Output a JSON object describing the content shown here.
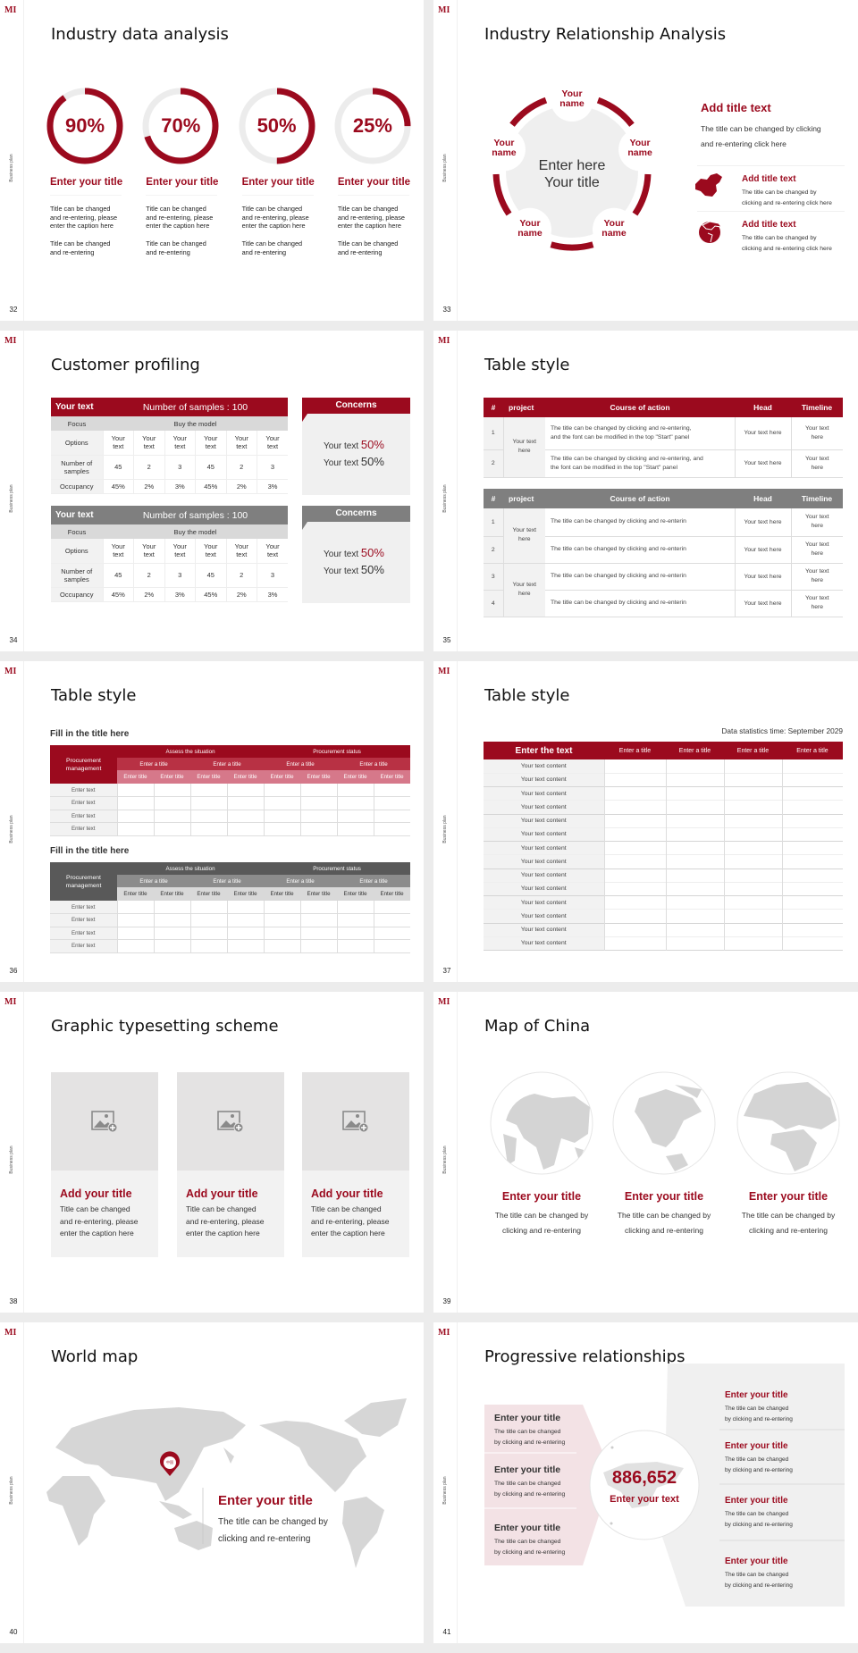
{
  "deck": {
    "logo": "MI",
    "side_label": "Business plan"
  },
  "colors": {
    "accent": "#9b0a1e",
    "gray_header": "#7f7f7f",
    "panel": "#f2f2f2"
  },
  "s32": {
    "title": "Industry data analysis",
    "page": "32",
    "donuts": [
      {
        "value": 90,
        "label": "90%",
        "title": "Enter your title",
        "p1": "Title can be changed\nand re-entering, please\nenter the caption here",
        "p2": "Title can be changed\nand re-entering"
      },
      {
        "value": 70,
        "label": "70%",
        "title": "Enter your title",
        "p1": "Title can be changed\nand re-entering, please\nenter the caption here",
        "p2": "Title can be changed\nand re-entering"
      },
      {
        "value": 50,
        "label": "50%",
        "title": "Enter your title",
        "p1": "Title can be changed\nand re-entering, please\nenter the caption here",
        "p2": "Title can be changed\nand re-entering"
      },
      {
        "value": 25,
        "label": "25%",
        "title": "Enter your title",
        "p1": "Title can be changed\nand re-entering, please\nenter the caption here",
        "p2": "Title can be changed\nand re-entering"
      }
    ]
  },
  "s33": {
    "title": "Industry Relationship Analysis",
    "page": "33",
    "center": "Enter here\nYour title",
    "names": [
      "Your\nname",
      "Your\nname",
      "Your\nname",
      "Your\nname",
      "Your\nname"
    ],
    "main_title": "Add title text",
    "main_body": "The title can be changed by clicking\nand re-entering click here",
    "items": [
      {
        "icon": "china-map-icon",
        "title": "Add title text",
        "body": "The title can be changed by\nclicking and re-entering click here"
      },
      {
        "icon": "globe-icon",
        "title": "Add title text",
        "body": "The title can be changed by\nclicking and re-entering click here"
      }
    ]
  },
  "s34": {
    "title": "Customer profiling",
    "page": "34",
    "tables": [
      {
        "head_left": "Your text",
        "head_right": "Number of samples : 100",
        "focus": "Focus",
        "focus_value": "Buy the model",
        "rows": [
          {
            "label": "Options",
            "cells": [
              "Your\ntext",
              "Your\ntext",
              "Your\ntext",
              "Your\ntext",
              "Your\ntext",
              "Your\ntext"
            ]
          },
          {
            "label": "Number of\nsamples",
            "cells": [
              "45",
              "2",
              "3",
              "45",
              "2",
              "3"
            ]
          },
          {
            "label": "Occupancy",
            "cells": [
              "45%",
              "2%",
              "3%",
              "45%",
              "2%",
              "3%"
            ]
          }
        ]
      },
      {
        "head_left": "Your text",
        "head_right": "Number of samples : 100",
        "focus": "Focus",
        "focus_value": "Buy the model",
        "rows": [
          {
            "label": "Options",
            "cells": [
              "Your\ntext",
              "Your\ntext",
              "Your\ntext",
              "Your\ntext",
              "Your\ntext",
              "Your\ntext"
            ]
          },
          {
            "label": "Number of\nsamples",
            "cells": [
              "45",
              "2",
              "3",
              "45",
              "2",
              "3"
            ]
          },
          {
            "label": "Occupancy",
            "cells": [
              "45%",
              "2%",
              "3%",
              "45%",
              "2%",
              "3%"
            ]
          }
        ]
      }
    ],
    "concerns": [
      {
        "title": "Concerns",
        "lines": [
          {
            "text": "Your text",
            "value": "50%"
          },
          {
            "text": "Your text",
            "value": "50%"
          }
        ]
      },
      {
        "title": "Concerns",
        "lines": [
          {
            "text": "Your text",
            "value": "50%"
          },
          {
            "text": "Your text",
            "value": "50%"
          }
        ]
      }
    ]
  },
  "s35": {
    "title": "Table style",
    "page": "35",
    "headers": [
      "#",
      "project",
      "Course of action",
      "Head",
      "Timeline"
    ],
    "table1": {
      "projects": [
        "Your text\nhere"
      ],
      "rows": [
        {
          "n": "1",
          "action": "The title can be changed by clicking and re-entering,\nand the font can be modified in the top \"Start\" panel",
          "head": "Your text here",
          "time": "Your text\nhere"
        },
        {
          "n": "2",
          "action": "The title can be changed by clicking and re-entering, and\nthe font can be modified in the top \"Start\" panel",
          "head": "Your text here",
          "time": "Your text\nhere"
        }
      ]
    },
    "table2": {
      "projects": [
        "Your text\nhere",
        "Your text\nhere"
      ],
      "rows": [
        {
          "n": "1",
          "action": "The title can be changed by clicking and re-enterin",
          "head": "Your text here",
          "time": "Your text\nhere"
        },
        {
          "n": "2",
          "action": "The title can be changed by clicking and re-enterin",
          "head": "Your text here",
          "time": "Your text\nhere"
        },
        {
          "n": "3",
          "action": "The title can be changed by clicking and re-enterin",
          "head": "Your text here",
          "time": "Your text\nhere"
        },
        {
          "n": "4",
          "action": "The title can be changed by clicking and re-enterin",
          "head": "Your text here",
          "time": "Your text\nhere"
        }
      ]
    }
  },
  "s36": {
    "title": "Table style",
    "page": "36",
    "tables": [
      {
        "caption": "Fill in the title here",
        "corner": "Procurement\nmanagement",
        "groups": [
          "Assess the situation",
          "Procurement status"
        ],
        "subgroups": [
          "Enter a title",
          "Enter a title",
          "Enter a title",
          "Enter a title"
        ],
        "cols": [
          "Enter title",
          "Enter title",
          "Enter title",
          "Enter title",
          "Enter title",
          "Enter title",
          "Enter title",
          "Enter title"
        ],
        "rows": [
          "Enter text",
          "Enter text",
          "Enter text",
          "Enter text"
        ]
      },
      {
        "caption": "Fill in the title here",
        "corner": "Procurement\nmanagement",
        "groups": [
          "Assess the situation",
          "Procurement status"
        ],
        "subgroups": [
          "Enter a title",
          "Enter a title",
          "Enter a title",
          "Enter a title"
        ],
        "cols": [
          "Enter title",
          "Enter title",
          "Enter title",
          "Enter title",
          "Enter title",
          "Enter title",
          "Enter title",
          "Enter title"
        ],
        "rows": [
          "Enter text",
          "Enter text",
          "Enter text",
          "Enter text"
        ]
      }
    ]
  },
  "s37": {
    "title": "Table style",
    "page": "37",
    "note": "Data statistics time: September 2029",
    "headers": [
      "Enter the text",
      "Enter a title",
      "Enter a title",
      "Enter a title",
      "Enter a title"
    ],
    "rows": [
      "Your text content",
      "Your text content",
      "Your text content",
      "Your text content",
      "Your text content",
      "Your text content",
      "Your text content",
      "Your text content",
      "Your text content",
      "Your text content",
      "Your text content",
      "Your text content",
      "Your text content",
      "Your text content"
    ]
  },
  "s38": {
    "title": "Graphic typesetting scheme",
    "page": "38",
    "cards": [
      {
        "title": "Add your title",
        "body": "Title can be changed\nand re-entering, please\nenter the caption here"
      },
      {
        "title": "Add your title",
        "body": "Title can be changed\nand re-entering, please\nenter the caption here"
      },
      {
        "title": "Add your title",
        "body": "Title can be changed\nand re-entering, please\nenter the caption here"
      }
    ]
  },
  "s39": {
    "title": "Map of China",
    "page": "39",
    "globes": [
      {
        "title": "Enter your title",
        "body": "The title can be changed by\nclicking and re-entering"
      },
      {
        "title": "Enter your title",
        "body": "The title can be changed by\nclicking and re-entering"
      },
      {
        "title": "Enter your title",
        "body": "The title can be changed by\nclicking and re-entering"
      }
    ]
  },
  "s40": {
    "title": "World map",
    "page": "40",
    "pin_label": "中国",
    "callout_title": "Enter your title",
    "callout_body": "The title can be changed by\nclicking and re-entering"
  },
  "s41": {
    "title": "Progressive relationships",
    "page": "41",
    "number": "886,652",
    "number_caption": "Enter your text",
    "left": [
      {
        "title": "Enter your title",
        "body": "The title can be changed\nby clicking and re-entering"
      },
      {
        "title": "Enter your title",
        "body": "The title can be changed\nby clicking and re-entering"
      },
      {
        "title": "Enter your title",
        "body": "The title can be changed\nby clicking and re-entering"
      }
    ],
    "right": [
      {
        "title": "Enter your title",
        "body": "The title can be changed\nby clicking and re-entering"
      },
      {
        "title": "Enter your title",
        "body": "The title can be changed\nby clicking and re-entering"
      },
      {
        "title": "Enter your title",
        "body": "The title can be changed\nby clicking and re-entering"
      },
      {
        "title": "Enter your title",
        "body": "The title can be changed\nby clicking and re-entering"
      }
    ]
  }
}
